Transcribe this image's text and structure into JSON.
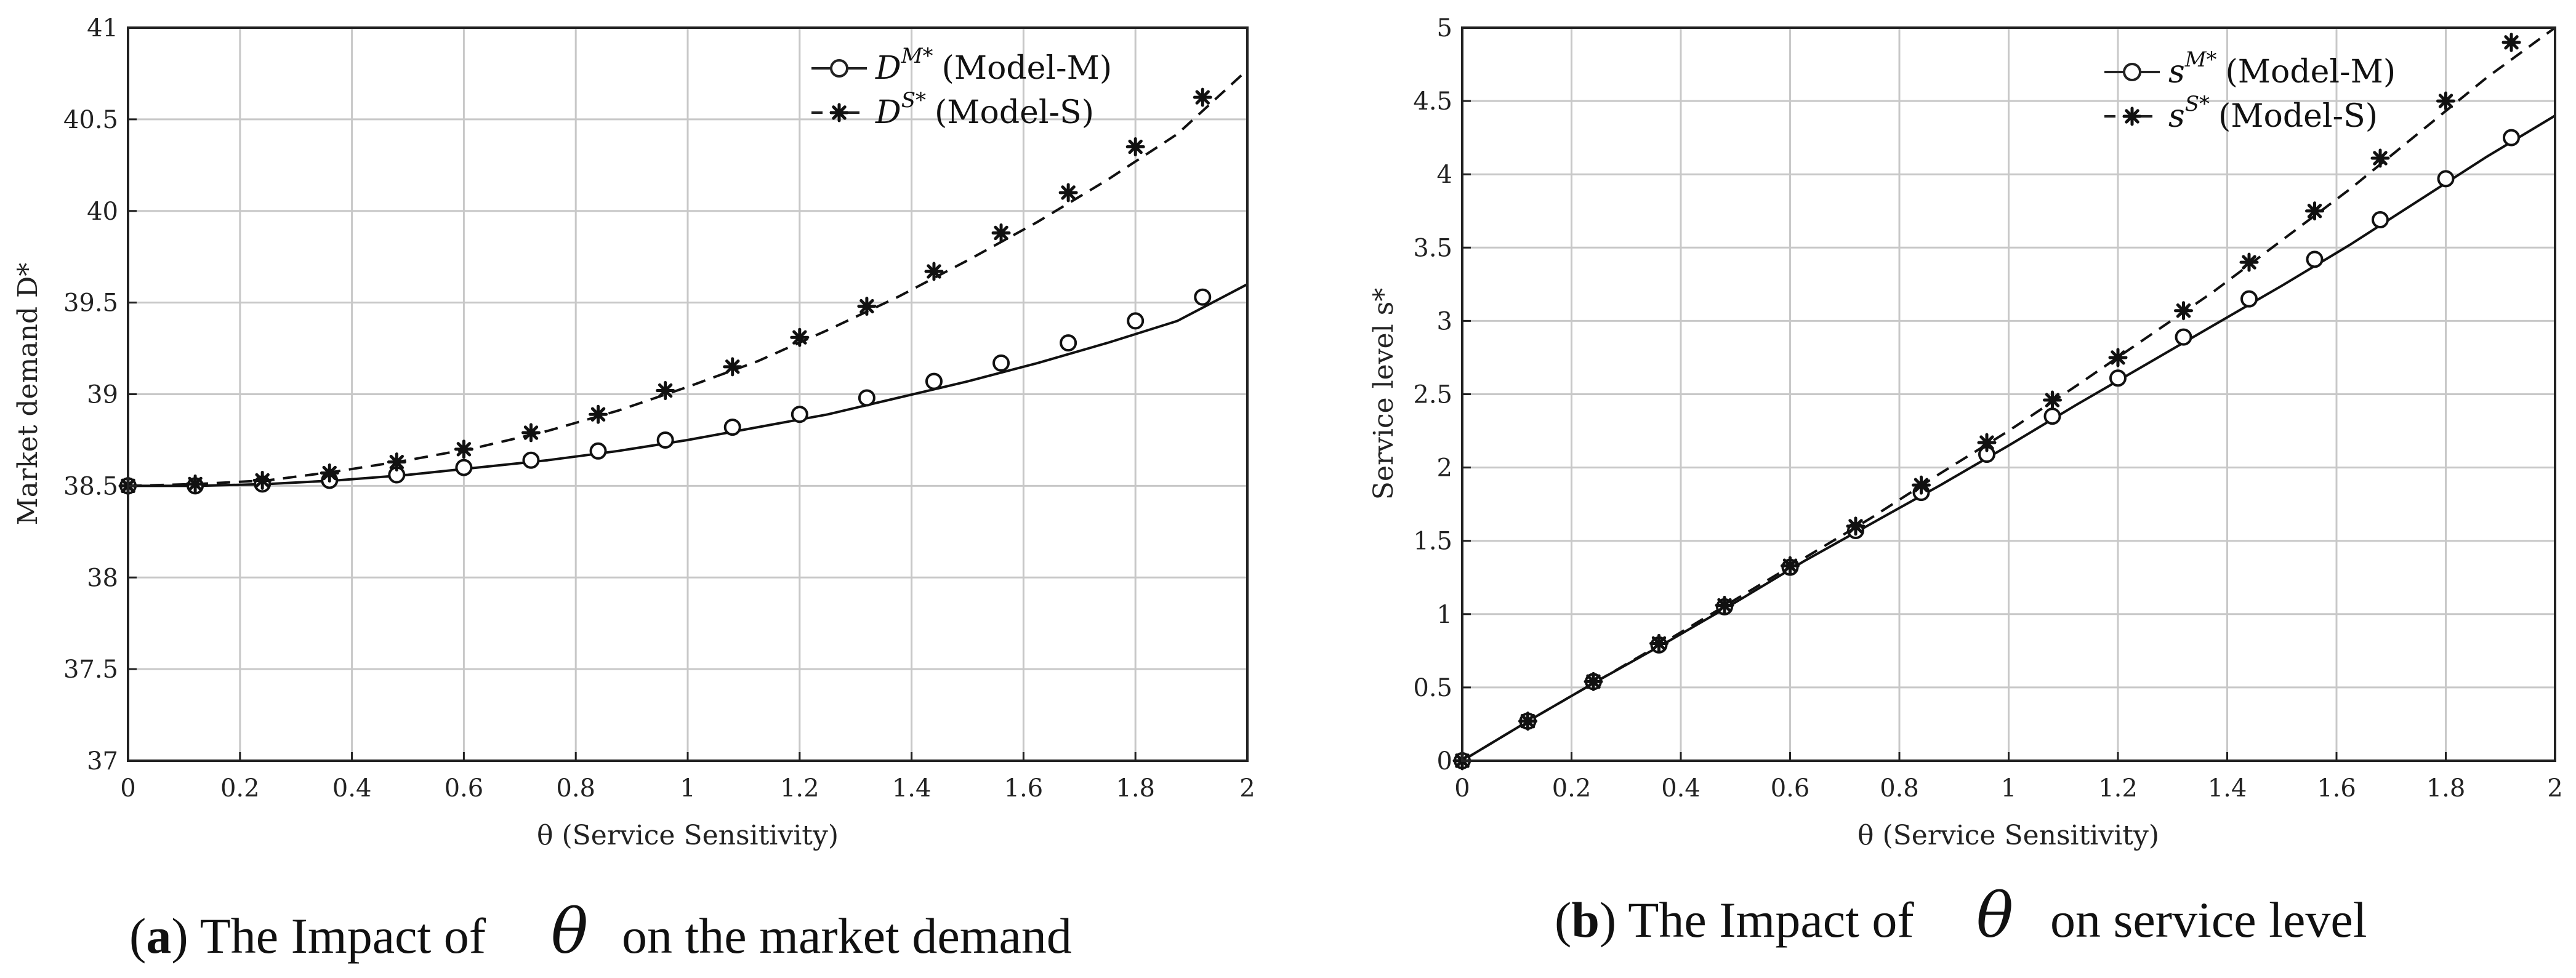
{
  "chart_data": [
    {
      "type": "line",
      "panel_id": "a",
      "xlabel": "θ (Service Sensitivity)",
      "ylabel": "Market demand D*",
      "xlim": [
        0,
        2
      ],
      "ylim": [
        37,
        41
      ],
      "xticks": [
        "0",
        "0.2",
        "0.4",
        "0.6",
        "0.8",
        "1",
        "1.2",
        "1.4",
        "1.6",
        "1.8",
        "2"
      ],
      "yticks": [
        "37",
        "37.5",
        "38",
        "38.5",
        "39",
        "39.5",
        "40",
        "40.5",
        "41"
      ],
      "grid": true,
      "legend_position": "top-right",
      "series": [
        {
          "name": "D^{M*} (Model-M)",
          "legend_symbol": "D",
          "legend_sup": "M*",
          "legend_text": "(Model-M)",
          "style": "solid",
          "marker": "circle",
          "x": [
            0,
            0.125,
            0.25,
            0.375,
            0.5,
            0.625,
            0.75,
            0.875,
            1.0,
            1.125,
            1.25,
            1.375,
            1.5,
            1.625,
            1.75,
            1.875,
            2.0
          ],
          "values": [
            38.5,
            38.5,
            38.51,
            38.53,
            38.56,
            38.6,
            38.64,
            38.69,
            38.75,
            38.82,
            38.89,
            38.98,
            39.07,
            39.17,
            39.28,
            39.4,
            39.6
          ],
          "marker_x": [
            0,
            0.12,
            0.24,
            0.36,
            0.48,
            0.6,
            0.72,
            0.84,
            0.96,
            1.08,
            1.2,
            1.32,
            1.44,
            1.56,
            1.68,
            1.8,
            1.92
          ],
          "marker_values": [
            38.5,
            38.5,
            38.51,
            38.53,
            38.56,
            38.6,
            38.64,
            38.69,
            38.75,
            38.82,
            38.89,
            38.98,
            39.07,
            39.17,
            39.28,
            39.4,
            39.53
          ]
        },
        {
          "name": "D^{S*} (Model-S)",
          "legend_symbol": "D",
          "legend_sup": "S*",
          "legend_text": "(Model-S)",
          "style": "dashed",
          "marker": "star",
          "x": [
            0,
            0.125,
            0.25,
            0.375,
            0.5,
            0.625,
            0.75,
            0.875,
            1.0,
            1.125,
            1.25,
            1.375,
            1.5,
            1.625,
            1.75,
            1.875,
            2.0
          ],
          "values": [
            38.5,
            38.51,
            38.53,
            38.58,
            38.64,
            38.71,
            38.8,
            38.91,
            39.04,
            39.18,
            39.35,
            39.53,
            39.73,
            39.94,
            40.17,
            40.42,
            40.77
          ],
          "marker_x": [
            0,
            0.12,
            0.24,
            0.36,
            0.48,
            0.6,
            0.72,
            0.84,
            0.96,
            1.08,
            1.2,
            1.32,
            1.44,
            1.56,
            1.68,
            1.8,
            1.92
          ],
          "marker_values": [
            38.5,
            38.51,
            38.53,
            38.57,
            38.63,
            38.7,
            38.79,
            38.89,
            39.02,
            39.15,
            39.31,
            39.48,
            39.67,
            39.88,
            40.1,
            40.35,
            40.62
          ]
        }
      ],
      "caption_label": "a",
      "caption_before": "The Impact of",
      "caption_symbol": "θ",
      "caption_after": "on the market demand"
    },
    {
      "type": "line",
      "panel_id": "b",
      "xlabel": "θ (Service Sensitivity)",
      "ylabel": "Service level s*",
      "xlim": [
        0,
        2
      ],
      "ylim": [
        0,
        5
      ],
      "xticks": [
        "0",
        "0.2",
        "0.4",
        "0.6",
        "0.8",
        "1",
        "1.2",
        "1.4",
        "1.6",
        "1.8",
        "2"
      ],
      "yticks": [
        "0",
        "0.5",
        "1",
        "1.5",
        "2",
        "2.5",
        "3",
        "3.5",
        "4",
        "4.5",
        "5"
      ],
      "grid": true,
      "legend_position": "top-right",
      "series": [
        {
          "name": "s^{M*} (Model-M)",
          "legend_symbol": "s",
          "legend_sup": "M*",
          "legend_text": "(Model-M)",
          "style": "solid",
          "marker": "circle",
          "x": [
            0,
            0.125,
            0.25,
            0.375,
            0.5,
            0.625,
            0.75,
            0.875,
            1.0,
            1.125,
            1.25,
            1.375,
            1.5,
            1.625,
            1.75,
            1.875,
            2.0
          ],
          "values": [
            0.0,
            0.28,
            0.55,
            0.81,
            1.08,
            1.36,
            1.62,
            1.88,
            2.15,
            2.43,
            2.7,
            2.97,
            3.24,
            3.52,
            3.82,
            4.12,
            4.4
          ],
          "marker_x": [
            0,
            0.12,
            0.24,
            0.36,
            0.48,
            0.6,
            0.72,
            0.84,
            0.96,
            1.08,
            1.2,
            1.32,
            1.44,
            1.56,
            1.68,
            1.8,
            1.92
          ],
          "marker_values": [
            0.0,
            0.27,
            0.54,
            0.79,
            1.05,
            1.32,
            1.57,
            1.83,
            2.09,
            2.35,
            2.61,
            2.89,
            3.15,
            3.42,
            3.69,
            3.97,
            4.25
          ]
        },
        {
          "name": "s^{S*} (Model-S)",
          "legend_symbol": "s",
          "legend_sup": "S*",
          "legend_text": "(Model-S)",
          "style": "dashed",
          "marker": "star",
          "x": [
            0,
            0.125,
            0.25,
            0.375,
            0.5,
            0.625,
            0.75,
            0.875,
            1.0,
            1.125,
            1.25,
            1.375,
            1.5,
            1.625,
            1.75,
            1.875,
            2.0
          ],
          "values": [
            0.0,
            0.28,
            0.55,
            0.82,
            1.1,
            1.38,
            1.66,
            1.96,
            2.25,
            2.56,
            2.88,
            3.2,
            3.55,
            3.9,
            4.28,
            4.66,
            5.0
          ],
          "marker_x": [
            0,
            0.12,
            0.24,
            0.36,
            0.48,
            0.6,
            0.72,
            0.84,
            0.96,
            1.08,
            1.2,
            1.32,
            1.44,
            1.56,
            1.68,
            1.8,
            1.92
          ],
          "marker_values": [
            0.0,
            0.27,
            0.54,
            0.8,
            1.06,
            1.33,
            1.6,
            1.88,
            2.17,
            2.46,
            2.75,
            3.07,
            3.4,
            3.75,
            4.11,
            4.5,
            4.9
          ]
        }
      ],
      "caption_label": "b",
      "caption_before": "The Impact of",
      "caption_symbol": "θ",
      "caption_after": "on service level"
    }
  ]
}
